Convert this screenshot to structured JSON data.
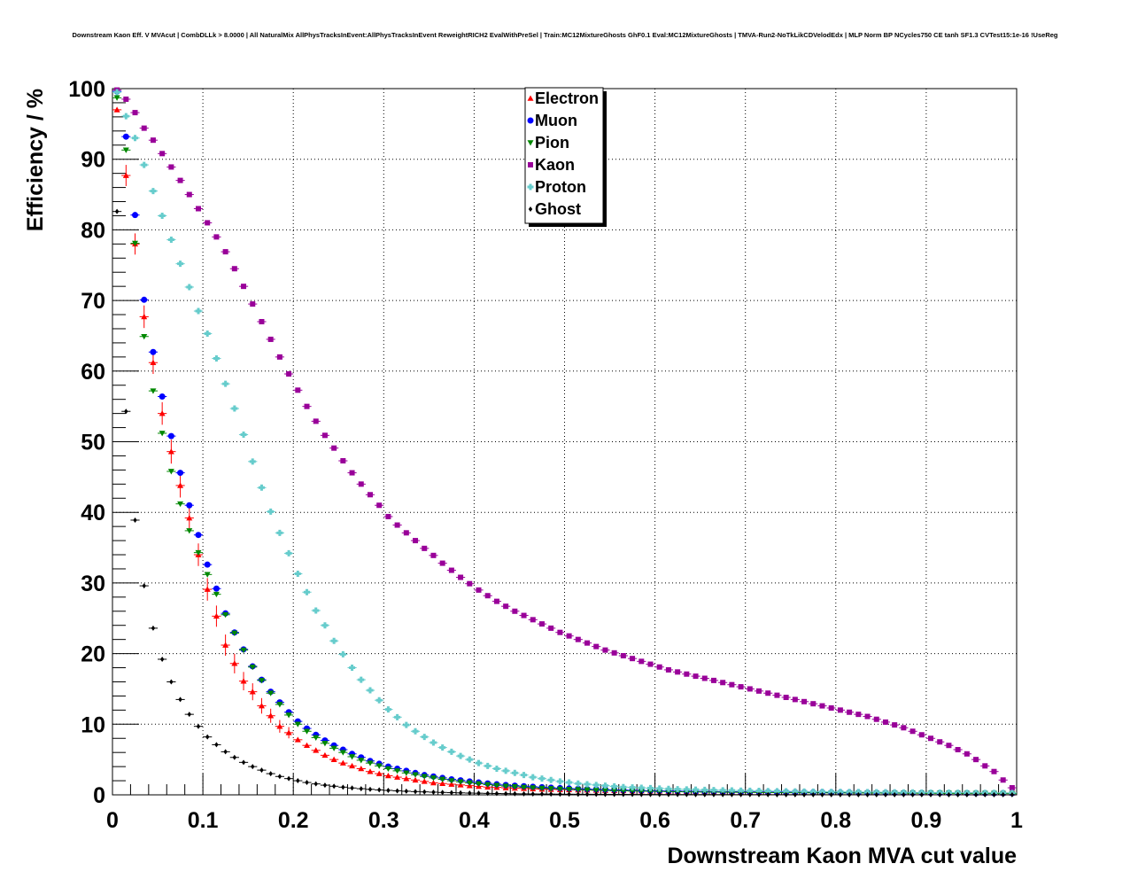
{
  "chart_data": {
    "type": "scatter",
    "title": "Downstream Kaon Eff. V MVAcut | CombDLLk > 8.0000 | All NaturalMix AllPhysTracksInEvent:AllPhysTracksInEvent ReweightRICH2 EvalWithPreSel | Train:MC12MixtureGhosts GhF0.1 Eval:MC12MixtureGhosts | TMVA-Run2-NoTkLikCDVelodEdx | MLP Norm BP NCycles750 CE tanh SF1.3 CVTest15:1e-16 !UseReg",
    "xlabel": "Downstream Kaon MVA cut value",
    "ylabel": "Efficiency / %",
    "xlim": [
      0,
      1
    ],
    "ylim": [
      0,
      100
    ],
    "x_ticks": [
      "0",
      "0.1",
      "0.2",
      "0.3",
      "0.4",
      "0.5",
      "0.6",
      "0.7",
      "0.8",
      "0.9",
      "1"
    ],
    "y_ticks": [
      "0",
      "10",
      "20",
      "30",
      "40",
      "50",
      "60",
      "70",
      "80",
      "90",
      "100"
    ],
    "grid": true,
    "legend_position": "top-center",
    "x": [
      0.005,
      0.015,
      0.025,
      0.035,
      0.045,
      0.055,
      0.065,
      0.075,
      0.085,
      0.095,
      0.105,
      0.115,
      0.125,
      0.135,
      0.145,
      0.155,
      0.165,
      0.175,
      0.185,
      0.195,
      0.205,
      0.215,
      0.225,
      0.235,
      0.245,
      0.255,
      0.265,
      0.275,
      0.285,
      0.295,
      0.305,
      0.315,
      0.325,
      0.335,
      0.345,
      0.355,
      0.365,
      0.375,
      0.385,
      0.395,
      0.405,
      0.415,
      0.425,
      0.435,
      0.445,
      0.455,
      0.465,
      0.475,
      0.485,
      0.495,
      0.505,
      0.515,
      0.525,
      0.535,
      0.545,
      0.555,
      0.565,
      0.575,
      0.585,
      0.595,
      0.605,
      0.615,
      0.625,
      0.635,
      0.645,
      0.655,
      0.665,
      0.675,
      0.685,
      0.695,
      0.705,
      0.715,
      0.725,
      0.735,
      0.745,
      0.755,
      0.765,
      0.775,
      0.785,
      0.795,
      0.805,
      0.815,
      0.825,
      0.835,
      0.845,
      0.855,
      0.865,
      0.875,
      0.885,
      0.895,
      0.905,
      0.915,
      0.925,
      0.935,
      0.945,
      0.955,
      0.965,
      0.975,
      0.985,
      0.995
    ],
    "series": [
      {
        "name": "Electron",
        "color": "#ff0000",
        "marker": "triangle-up",
        "values": [
          97,
          87.7,
          78,
          67.7,
          61.2,
          54,
          48.6,
          43.8,
          39.2,
          34,
          29.1,
          25.3,
          21.2,
          18.6,
          16.1,
          14.6,
          12.6,
          11.2,
          9.7,
          8.8,
          7.8,
          7.0,
          6.3,
          5.6,
          5.0,
          4.5,
          4.1,
          3.7,
          3.3,
          3.0,
          2.7,
          2.5,
          2.3,
          2.1,
          1.9,
          1.7,
          1.6,
          1.5,
          1.4,
          1.3,
          1.2,
          1.1,
          1.05,
          1.0,
          0.95,
          0.9,
          0.85,
          0.8,
          0.78,
          0.75,
          0.72,
          0.7,
          0.68,
          0.65,
          0.62,
          0.6,
          0.58,
          0.56,
          0.55,
          0.53,
          0.52,
          0.5,
          0.5,
          0.48,
          0.47,
          0.46,
          0.45,
          0.44,
          0.43,
          0.42,
          0.41,
          0.4,
          0.4,
          0.39,
          0.38,
          0.38,
          0.37,
          0.36,
          0.36,
          0.35,
          0.35,
          0.34,
          0.34,
          0.33,
          0.33,
          0.32,
          0.32,
          0.31,
          0.31,
          0.3,
          0.3,
          0.3,
          0.29,
          0.29,
          0.28,
          0.28,
          0.27,
          0.27,
          0.26,
          0.26
        ]
      },
      {
        "name": "Muon",
        "color": "#0000ff",
        "marker": "circle",
        "values": [
          99.6,
          93.2,
          82.1,
          70.1,
          62.7,
          56.4,
          50.8,
          45.6,
          41,
          36.8,
          32.6,
          29.2,
          25.7,
          23,
          20.6,
          18.2,
          16.3,
          14.6,
          13.1,
          11.7,
          10.4,
          9.4,
          8.5,
          7.7,
          7,
          6.4,
          5.8,
          5.3,
          4.8,
          4.4,
          4,
          3.7,
          3.4,
          3.1,
          2.8,
          2.6,
          2.4,
          2.2,
          2.05,
          1.9,
          1.75,
          1.62,
          1.5,
          1.4,
          1.3,
          1.22,
          1.15,
          1.08,
          1.02,
          0.96,
          0.9,
          0.86,
          0.82,
          0.78,
          0.74,
          0.7,
          0.67,
          0.64,
          0.61,
          0.59,
          0.57,
          0.55,
          0.53,
          0.51,
          0.49,
          0.47,
          0.46,
          0.44,
          0.43,
          0.42,
          0.41,
          0.4,
          0.39,
          0.38,
          0.37,
          0.36,
          0.35,
          0.34,
          0.33,
          0.32,
          0.32,
          0.31,
          0.3,
          0.3,
          0.29,
          0.28,
          0.28,
          0.27,
          0.27,
          0.26,
          0.26,
          0.25,
          0.25,
          0.24,
          0.24,
          0.23,
          0.23,
          0.22,
          0.22,
          0.21
        ]
      },
      {
        "name": "Pion",
        "color": "#008800",
        "marker": "triangle-down",
        "values": [
          98.7,
          91.3,
          78.1,
          64.9,
          57.2,
          51.2,
          45.8,
          41.2,
          37.4,
          34.3,
          31.2,
          28.4,
          25.5,
          22.9,
          20.5,
          18.1,
          16.2,
          14.4,
          12.8,
          11.3,
          10.0,
          9.0,
          8.1,
          7.3,
          6.6,
          6.0,
          5.4,
          4.9,
          4.5,
          4.1,
          3.7,
          3.4,
          3.1,
          2.85,
          2.6,
          2.4,
          2.2,
          2.0,
          1.85,
          1.7,
          1.57,
          1.45,
          1.34,
          1.24,
          1.15,
          1.07,
          1.0,
          0.94,
          0.88,
          0.83,
          0.78,
          0.74,
          0.7,
          0.66,
          0.63,
          0.6,
          0.57,
          0.54,
          0.52,
          0.5,
          0.48,
          0.46,
          0.44,
          0.42,
          0.41,
          0.39,
          0.38,
          0.37,
          0.36,
          0.35,
          0.34,
          0.33,
          0.32,
          0.31,
          0.3,
          0.3,
          0.29,
          0.28,
          0.28,
          0.27,
          0.27,
          0.26,
          0.26,
          0.25,
          0.25,
          0.24,
          0.24,
          0.23,
          0.23,
          0.22,
          0.22,
          0.21,
          0.21,
          0.2,
          0.2,
          0.2,
          0.19,
          0.19,
          0.18,
          0.18
        ]
      },
      {
        "name": "Kaon",
        "color": "#990099",
        "marker": "square",
        "values": [
          99.8,
          98.5,
          96.6,
          94.4,
          92.7,
          90.8,
          88.9,
          87,
          85,
          83,
          81,
          79,
          76.9,
          74.5,
          72,
          69.5,
          67,
          64.5,
          62,
          59.6,
          57.3,
          55,
          52.9,
          50.9,
          49.1,
          47.3,
          45.6,
          44,
          42.5,
          41,
          39.4,
          38.2,
          37.1,
          36,
          34.9,
          33.9,
          32.8,
          31.8,
          30.8,
          29.9,
          29,
          28.2,
          27.4,
          26.7,
          26,
          25.4,
          24.8,
          24.2,
          23.6,
          23,
          22.5,
          22,
          21.5,
          21,
          20.5,
          20.1,
          19.7,
          19.3,
          18.9,
          18.5,
          18.1,
          17.7,
          17.4,
          17.1,
          16.8,
          16.5,
          16.2,
          15.9,
          15.6,
          15.3,
          15,
          14.7,
          14.4,
          14.1,
          13.8,
          13.5,
          13.2,
          12.9,
          12.6,
          12.3,
          12,
          11.7,
          11.4,
          11.1,
          10.7,
          10.3,
          9.9,
          9.5,
          9.0,
          8.5,
          8.0,
          7.5,
          7.0,
          6.4,
          5.8,
          5.0,
          4.1,
          3.3,
          2.1,
          1.0
        ]
      },
      {
        "name": "Proton",
        "color": "#66cccc",
        "marker": "cross",
        "values": [
          99.5,
          96.1,
          93,
          89.2,
          85.5,
          82,
          78.6,
          75.2,
          71.9,
          68.5,
          65.3,
          61.8,
          58.2,
          54.7,
          51,
          47.2,
          43.5,
          40.1,
          37.1,
          34.2,
          31.3,
          28.7,
          26.1,
          24,
          21.8,
          19.9,
          18,
          16.3,
          14.8,
          13.4,
          12.1,
          11.0,
          9.9,
          9.0,
          8.2,
          7.4,
          6.7,
          6.1,
          5.5,
          5.0,
          4.5,
          4.1,
          3.7,
          3.4,
          3.1,
          2.8,
          2.5,
          2.3,
          2.1,
          1.9,
          1.75,
          1.6,
          1.5,
          1.4,
          1.3,
          1.2,
          1.1,
          1.05,
          1.0,
          0.95,
          0.9,
          0.85,
          0.8,
          0.77,
          0.74,
          0.71,
          0.68,
          0.65,
          0.62,
          0.6,
          0.58,
          0.56,
          0.54,
          0.52,
          0.5,
          0.48,
          0.47,
          0.45,
          0.44,
          0.43,
          0.42,
          0.41,
          0.4,
          0.39,
          0.38,
          0.37,
          0.36,
          0.35,
          0.34,
          0.33,
          0.32,
          0.32,
          0.31,
          0.3,
          0.3,
          0.29,
          0.29,
          0.28,
          0.28,
          0.27
        ]
      },
      {
        "name": "Ghost",
        "color": "#000000",
        "marker": "diamond",
        "values": [
          82.6,
          54.3,
          38.9,
          29.6,
          23.6,
          19.2,
          16,
          13.5,
          11.4,
          9.7,
          8.2,
          7.1,
          6.1,
          5.3,
          4.6,
          4.0,
          3.5,
          3.0,
          2.6,
          2.3,
          2.0,
          1.75,
          1.55,
          1.37,
          1.22,
          1.09,
          0.97,
          0.87,
          0.78,
          0.7,
          0.63,
          0.57,
          0.51,
          0.46,
          0.42,
          0.38,
          0.34,
          0.31,
          0.28,
          0.25,
          0.23,
          0.21,
          0.19,
          0.17,
          0.15,
          0.14,
          0.13,
          0.12,
          0.11,
          0.1,
          0.09,
          0.085,
          0.08,
          0.075,
          0.07,
          0.065,
          0.06,
          0.055,
          0.05,
          0.05,
          0.045,
          0.045,
          0.04,
          0.04,
          0.035,
          0.035,
          0.03,
          0.03,
          0.03,
          0.028,
          0.026,
          0.025,
          0.024,
          0.023,
          0.022,
          0.021,
          0.02,
          0.02,
          0.019,
          0.018,
          0.018,
          0.017,
          0.016,
          0.016,
          0.015,
          0.015,
          0.014,
          0.014,
          0.013,
          0.013,
          0.012,
          0.012,
          0.012,
          0.011,
          0.011,
          0.01,
          0.01,
          0.01,
          0.01,
          0.01
        ]
      }
    ],
    "error_bars": {
      "Electron": {
        "x": [
          0.015,
          0.025,
          0.035,
          0.045,
          0.055,
          0.065,
          0.075,
          0.085,
          0.095,
          0.105,
          0.115,
          0.125,
          0.135,
          0.145,
          0.155,
          0.165,
          0.175,
          0.185,
          0.195
        ],
        "err": [
          1.5,
          1.5,
          1.6,
          1.6,
          1.6,
          1.7,
          1.7,
          1.6,
          1.6,
          1.6,
          1.5,
          1.5,
          1.4,
          1.3,
          1.2,
          1.1,
          1.0,
          0.9,
          0.8
        ]
      },
      "Ghost": {
        "x": [
          0.005,
          0.015,
          0.025,
          0.035
        ],
        "err": [
          0.3,
          0.3,
          0.3,
          0.3
        ]
      }
    }
  }
}
